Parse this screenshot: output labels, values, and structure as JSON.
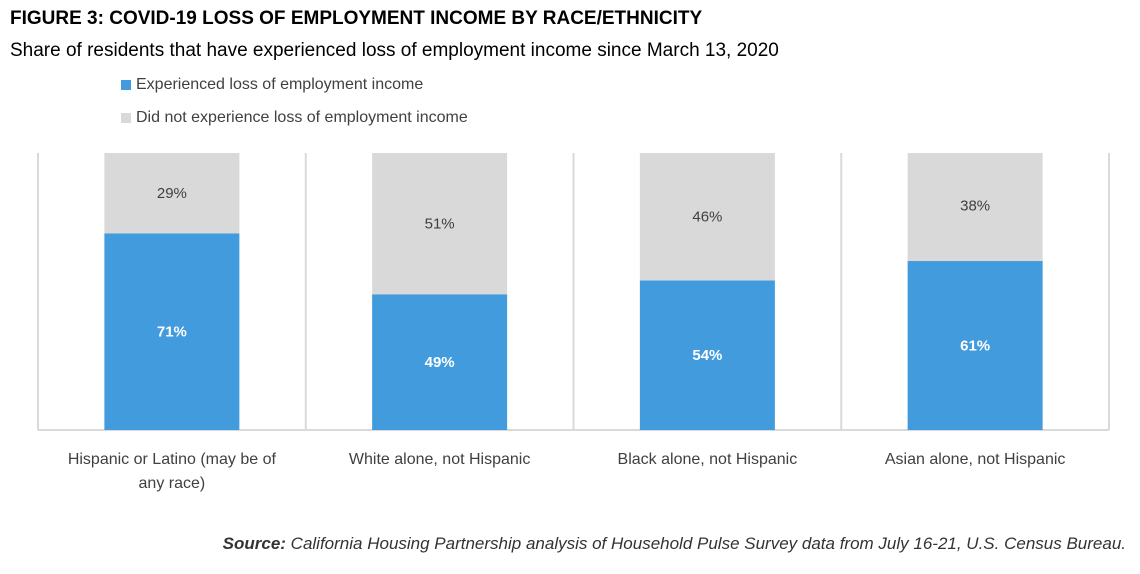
{
  "chart_data": {
    "type": "bar",
    "stacked": true,
    "title": "FIGURE 3: COVID-19 LOSS OF EMPLOYMENT INCOME BY RACE/ETHNICITY",
    "subtitle": "Share of residents that have experienced loss of employment income since March 13, 2020",
    "xlabel": "",
    "ylabel": "",
    "ylim": [
      0,
      100
    ],
    "grid": "vertical category separators",
    "legend_position": "top-left",
    "categories": [
      [
        "Hispanic or Latino (may be of",
        "any race)"
      ],
      [
        "White alone, not Hispanic"
      ],
      [
        "Black alone, not Hispanic"
      ],
      [
        "Asian alone, not Hispanic"
      ]
    ],
    "series": [
      {
        "name": "Experienced loss of employment income",
        "color": "#419BDC",
        "label_color": "#FFFFFF",
        "values": [
          71,
          49,
          54,
          61
        ],
        "labels": [
          "71%",
          "49%",
          "54%",
          "61%"
        ]
      },
      {
        "name": "Did not experience loss of employment income",
        "color": "#D9D9D9",
        "label_color": "#404040",
        "values": [
          29,
          51,
          46,
          38
        ],
        "labels": [
          "29%",
          "51%",
          "46%",
          "38%"
        ]
      }
    ],
    "source_label": "Source:",
    "source_text": " California Housing Partnership analysis of Household Pulse Survey data from July 16-21, U.S. Census Bureau."
  }
}
